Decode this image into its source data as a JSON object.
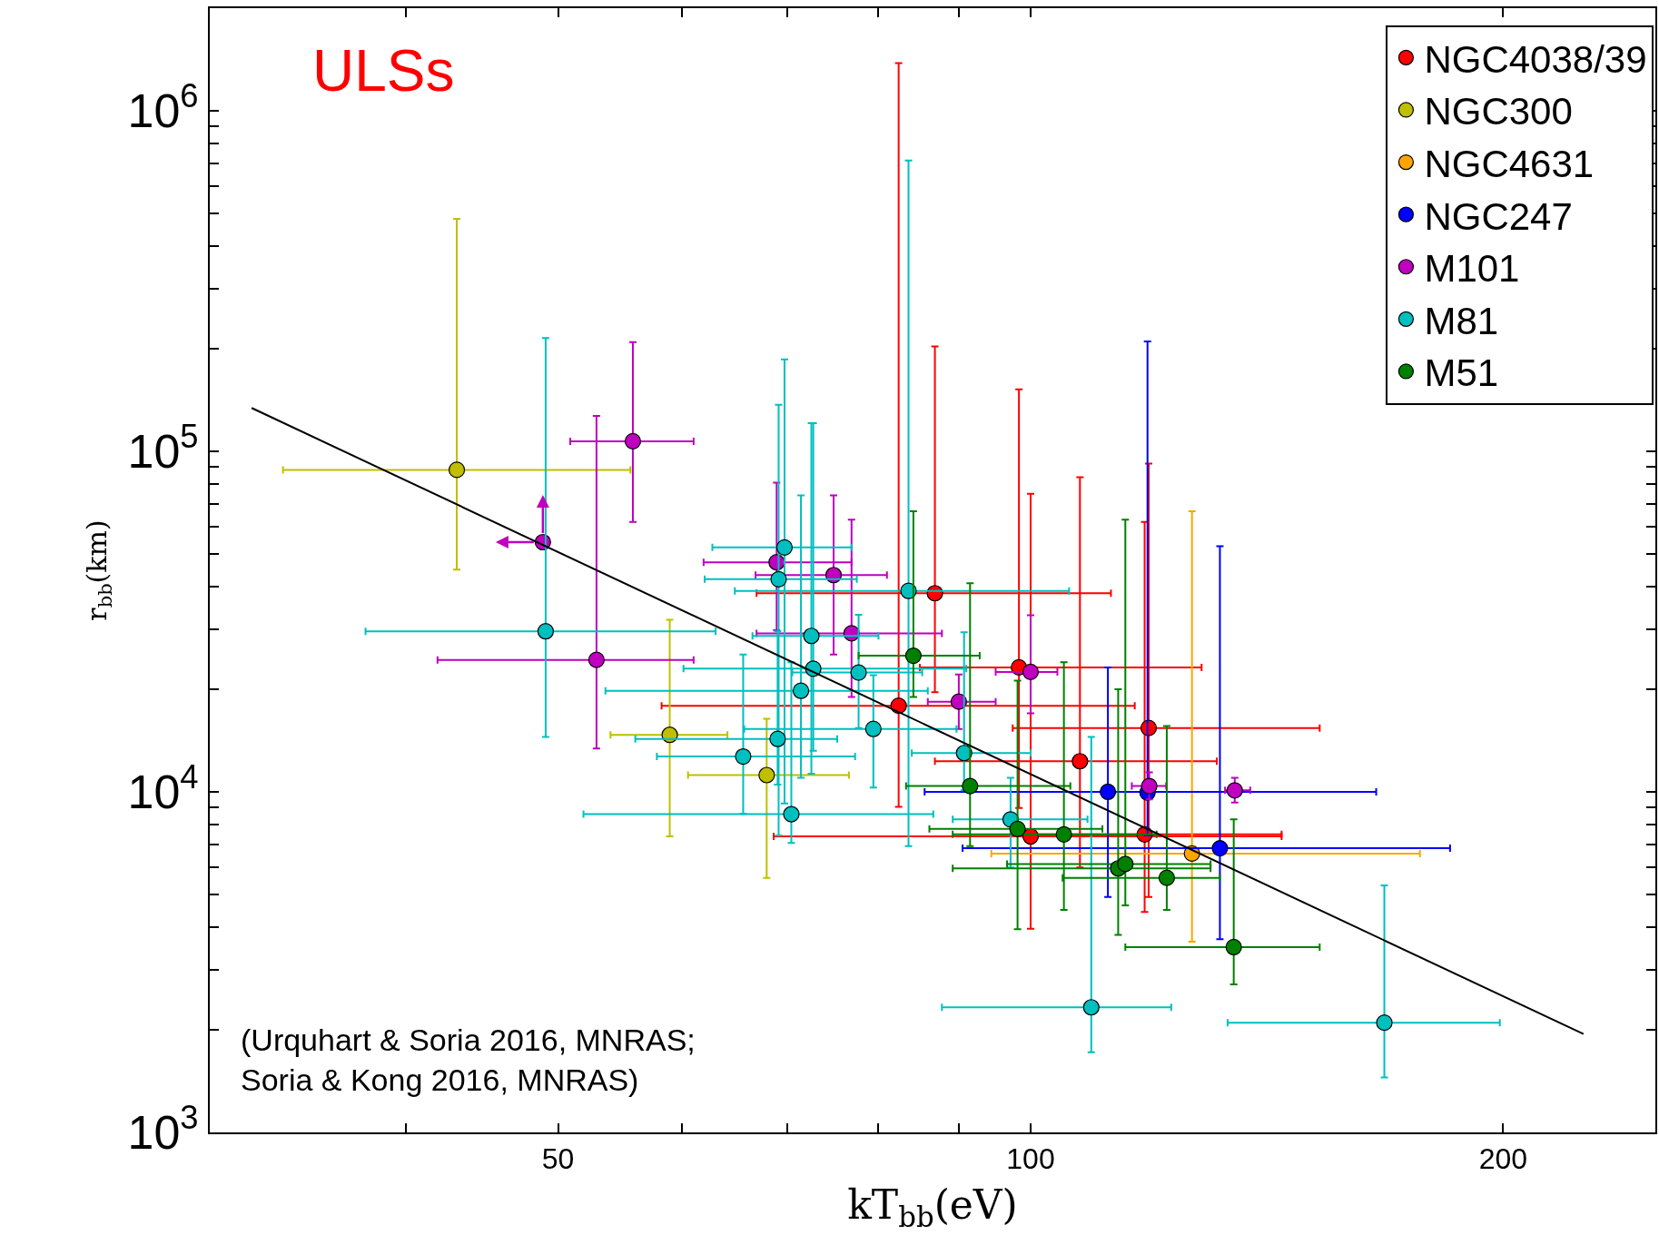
{
  "chart_data": {
    "type": "scatter",
    "xlabel": "kT$_{bb}$(eV)",
    "ylabel": "r$_{bb}$(km)",
    "log": "xy",
    "grid": false,
    "legend": "top right",
    "marker": "circle",
    "xlim": [
      30,
      250
    ],
    "ylim": [
      1000,
      2000000
    ],
    "xticks": [
      {
        "value": 30,
        "label": null
      },
      {
        "value": 40,
        "label": null
      },
      50,
      {
        "value": 60,
        "label": null
      },
      {
        "value": 70,
        "label": null
      },
      {
        "value": 80,
        "label": null
      },
      {
        "value": 90,
        "label": null
      },
      100,
      200
    ],
    "yticks": [
      {
        "value": 1000,
        "label": "10$^{3}$"
      },
      {
        "value": 2000,
        "label": null
      },
      {
        "value": 3000,
        "label": null
      },
      {
        "value": 4000,
        "label": null
      },
      {
        "value": 5000,
        "label": null
      },
      {
        "value": 6000,
        "label": null
      },
      {
        "value": 7000,
        "label": null
      },
      {
        "value": 8000,
        "label": null
      },
      {
        "value": 9000,
        "label": null
      },
      {
        "value": 10000,
        "label": "10$^{4}$"
      },
      {
        "value": 20000,
        "label": null
      },
      {
        "value": 30000,
        "label": null
      },
      {
        "value": 40000,
        "label": null
      },
      {
        "value": 50000,
        "label": null
      },
      {
        "value": 60000,
        "label": null
      },
      {
        "value": 70000,
        "label": null
      },
      {
        "value": 80000,
        "label": null
      },
      {
        "value": 90000,
        "label": null
      },
      {
        "value": 100000,
        "label": "10$^{5}$"
      },
      {
        "value": 200000,
        "label": null
      },
      {
        "value": 300000,
        "label": null
      },
      {
        "value": 400000,
        "label": null
      },
      {
        "value": 500000,
        "label": null
      },
      {
        "value": 600000,
        "label": null
      },
      {
        "value": 700000,
        "label": null
      },
      {
        "value": 800000,
        "label": null
      },
      {
        "value": 900000,
        "label": null
      },
      {
        "value": 1000000,
        "label": "10$^{6}$"
      },
      {
        "value": 2000000,
        "label": null
      }
    ],
    "annotations": [
      "ULSs",
      "(Urquhart & Soria 2016, MNRAS;\nSoria & Kong 2016, MNRAS)"
    ],
    "series": [
      {
        "name": "NGC4038/39",
        "color": "#ff0000",
        "x": [
          86.9,
          82.4,
          98.3,
          100,
          107.5,
          118.9,
          118.2
        ],
        "values": [
          38300,
          17900,
          23200,
          7400,
          12300,
          15400,
          7500
        ],
        "xerrors": [
          [
            66.9,
            112.5
          ],
          [
            58.2,
            116.5
          ],
          [
            85,
            128.5
          ],
          [
            68.6,
            144.5
          ],
          [
            86.9,
            131.4
          ],
          [
            97.4,
            152.8
          ],
          [
            100,
            144.5
          ]
        ],
        "errors": [
          [
            19600,
            203000
          ],
          [
            9040,
            1380000
          ],
          [
            8960,
            152000
          ],
          [
            3960,
            75000
          ],
          [
            6000,
            83900
          ],
          [
            4910,
            92000
          ],
          [
            4440,
            62000
          ]
        ]
      },
      {
        "name": "NGC300",
        "color": "#bfbf00",
        "x": [
          43.1,
          58.9,
          67.9
        ],
        "values": [
          88200,
          14700,
          11200
        ],
        "xerrors": [
          [
            33.4,
            55.6
          ],
          [
            54,
            64.1
          ],
          [
            60.5,
            76.6
          ]
        ],
        "errors": [
          [
            44900,
            481000
          ],
          [
            7400,
            32000
          ],
          [
            5590,
            16400
          ]
        ]
      },
      {
        "name": "NGC4631",
        "color": "#ffa500",
        "x": [
          126.7
        ],
        "values": [
          6590
        ],
        "xerrors": [
          [
            94.4,
            177
          ]
        ],
        "errors": [
          [
            3630,
            66700
          ]
        ]
      },
      {
        "name": "NGC247",
        "color": "#0000ff",
        "x": [
          112,
          118.7,
          132
        ],
        "values": [
          10000,
          9950,
          6830
        ],
        "xerrors": [
          [
            85.6,
            166
          ],
          null,
          [
            90.5,
            185
          ]
        ],
        "errors": [
          [
            4910,
            23200
          ],
          [
            7450,
            210000
          ],
          [
            3690,
            52600
          ]
        ]
      },
      {
        "name": "M101",
        "color": "#bf00bf",
        "x": [
          55.8,
          48.9,
          52.9,
          68.9,
          74.9,
          76.9,
          90,
          100,
          119,
          134.9
        ],
        "values": [
          107000,
          54100,
          24400,
          47200,
          43300,
          29200,
          18400,
          22500,
          10400,
          10100
        ],
        "xerrors": [
          [
            50.9,
            61
          ],
          null,
          [
            41.9,
            61
          ],
          [
            61.9,
            76.9
          ],
          [
            66.8,
            81
          ],
          [
            66.9,
            87.8
          ],
          [
            86,
            95
          ],
          [
            95,
            104
          ],
          [
            116,
            122
          ],
          [
            133,
            138
          ]
        ],
        "errors": [
          [
            62000,
            209000
          ],
          null,
          [
            13400,
            127000
          ],
          [
            29800,
            80900
          ],
          [
            25300,
            74200
          ],
          [
            19000,
            63000
          ],
          [
            15300,
            22100
          ],
          [
            17000,
            33000
          ],
          [
            9500,
            11400
          ],
          [
            9300,
            11000
          ]
        ]
      },
      {
        "name": "M81",
        "color": "#00bfbf",
        "x": [
          49.1,
          65.6,
          69,
          70.4,
          71.4,
          72.7,
          72.5,
          69.1,
          69.7,
          77.7,
          79.4,
          83.6,
          90.7,
          97.1,
          109.3,
          168
        ],
        "values": [
          29600,
          12700,
          14300,
          8600,
          19800,
          23000,
          28700,
          42100,
          52200,
          22400,
          15300,
          38900,
          13000,
          8300,
          2330,
          2100
        ],
        "xerrors": [
          [
            37.7,
            63
          ],
          [
            57.8,
            77.3
          ],
          [
            56,
            75.3
          ],
          [
            51.9,
            86.7
          ],
          [
            53.6,
            86
          ],
          [
            60.1,
            91
          ],
          [
            66.5,
            80
          ],
          [
            62,
            77.5
          ],
          [
            62.7,
            76.9
          ],
          [
            70.5,
            85.3
          ],
          [
            65.7,
            89.7
          ],
          [
            64.8,
            105.8
          ],
          [
            84,
            100
          ],
          [
            89.2,
            108.7
          ],
          [
            87.8,
            122.9
          ],
          [
            133.5,
            199
          ]
        ],
        "errors": [
          [
            14500,
            215000
          ],
          [
            8610,
            25300
          ],
          [
            10500,
            29600
          ],
          [
            7080,
            24000
          ],
          [
            11000,
            74200
          ],
          [
            13200,
            121000
          ],
          [
            11300,
            121000
          ],
          [
            7450,
            137000
          ],
          [
            9250,
            186000
          ],
          [
            15400,
            33100
          ],
          [
            10300,
            22000
          ],
          [
            6930,
            714000
          ],
          [
            10100,
            29400
          ],
          [
            6000,
            11000
          ],
          [
            1720,
            14500
          ],
          [
            1450,
            5310
          ]
        ]
      },
      {
        "name": "M51",
        "color": "#008000",
        "x": [
          84.2,
          91.5,
          98.1,
          105,
          113.7,
          114.9,
          122.1,
          134.7
        ],
        "values": [
          25100,
          10400,
          7780,
          7500,
          5960,
          6140,
          5590,
          3500
        ],
        "xerrors": [
          [
            77.7,
            92.8
          ],
          [
            83.3,
            106
          ],
          [
            86.2,
            111.1
          ],
          [
            89.2,
            120.3
          ],
          [
            89.2,
            130.2
          ],
          [
            96.6,
            130.2
          ],
          [
            104.8,
            132
          ],
          [
            114.9,
            152.8
          ]
        ],
        "errors": [
          [
            19000,
            66700
          ],
          [
            6930,
            41000
          ],
          [
            3950,
            21200
          ],
          [
            4500,
            24000
          ],
          [
            3800,
            20000
          ],
          [
            4640,
            63000
          ],
          [
            4500,
            15600
          ],
          [
            2720,
            8300
          ]
        ]
      },
      {
        "type": "line",
        "color": "#000000",
        "marker": "none",
        "line_style": "solid",
        "x": [
          31.9,
          225
        ],
        "values": [
          134000,
          1945
        ]
      }
    ]
  }
}
